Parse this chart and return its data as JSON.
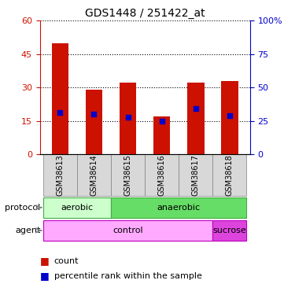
{
  "title": "GDS1448 / 251422_at",
  "samples": [
    "GSM38613",
    "GSM38614",
    "GSM38615",
    "GSM38616",
    "GSM38617",
    "GSM38618"
  ],
  "counts": [
    50,
    29,
    32,
    17,
    32,
    33
  ],
  "percentiles": [
    31,
    30,
    28,
    25,
    34,
    29
  ],
  "bar_color": "#cc1100",
  "square_color": "#0000cc",
  "ylim_left": [
    0,
    60
  ],
  "ylim_right": [
    0,
    100
  ],
  "yticks_left": [
    0,
    15,
    30,
    45,
    60
  ],
  "yticks_right": [
    0,
    25,
    50,
    75,
    100
  ],
  "ytick_labels_right": [
    "0",
    "25",
    "50",
    "75",
    "100%"
  ],
  "protocol_labels": [
    [
      "aerobic",
      0,
      2
    ],
    [
      "anaerobic",
      2,
      6
    ]
  ],
  "agent_labels": [
    [
      "control",
      0,
      5
    ],
    [
      "sucrose",
      5,
      6
    ]
  ],
  "protocol_colors": [
    "#ccffcc",
    "#66dd66"
  ],
  "agent_colors": [
    "#ffaaff",
    "#dd44dd"
  ],
  "legend_count_color": "#cc1100",
  "legend_square_color": "#0000cc",
  "grid_color": "#000000",
  "tick_color_left": "#cc1100",
  "tick_color_right": "#0000cc"
}
